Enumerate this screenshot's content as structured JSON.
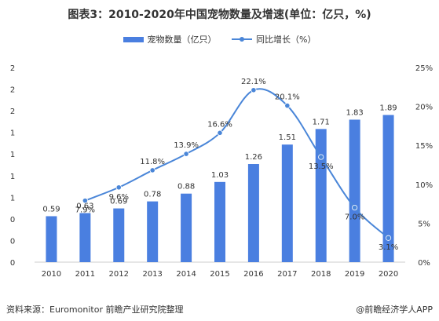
{
  "title": "图表3：2010-2020年中国宠物数量及增速(单位：亿只，%)",
  "legend": {
    "bar_label": "宠物数量（亿只）",
    "line_label": "同比增长（%）"
  },
  "source": "资料来源：Euromonitor 前瞻产业研究院整理",
  "logo": "@前瞻经济学人APP",
  "colors": {
    "bar": "#4a7fe0",
    "line": "#4a86d8",
    "axis": "#cccccc",
    "text": "#333333"
  },
  "chart_data": {
    "type": "bar",
    "categories": [
      "2010",
      "2011",
      "2012",
      "2013",
      "2014",
      "2015",
      "2016",
      "2017",
      "2018",
      "2019",
      "2020"
    ],
    "series": [
      {
        "name": "宠物数量（亿只）",
        "type": "bar",
        "axis": "left",
        "values": [
          0.59,
          0.63,
          0.69,
          0.78,
          0.88,
          1.03,
          1.26,
          1.51,
          1.71,
          1.83,
          1.89
        ],
        "labels": [
          "0.59",
          "0.63",
          "0.69",
          "0.78",
          "0.88",
          "1.03",
          "1.26",
          "1.51",
          "1.71",
          "1.83",
          "1.89"
        ]
      },
      {
        "name": "同比增长（%）",
        "type": "line",
        "axis": "right",
        "smooth": true,
        "values": [
          null,
          7.9,
          9.6,
          11.8,
          13.9,
          16.6,
          22.1,
          20.1,
          13.5,
          7.0,
          3.1
        ],
        "labels": [
          "",
          "7.9%",
          "9.6%",
          "11.8%",
          "13.9%",
          "16.6%",
          "22.1%",
          "20.1%",
          "13.5%",
          "7.0%",
          "3.1%"
        ]
      }
    ],
    "y_left": {
      "min": 0,
      "max": 2.5,
      "tick_labels": [
        "0",
        "0",
        "0",
        "1",
        "1",
        "1",
        "1",
        "2",
        "2",
        "2"
      ]
    },
    "y_right": {
      "min": 0,
      "max": 25,
      "tick_labels": [
        "0%",
        "5%",
        "10%",
        "15%",
        "20%",
        "25%"
      ]
    },
    "legend_position": "top-center",
    "grid": false
  }
}
